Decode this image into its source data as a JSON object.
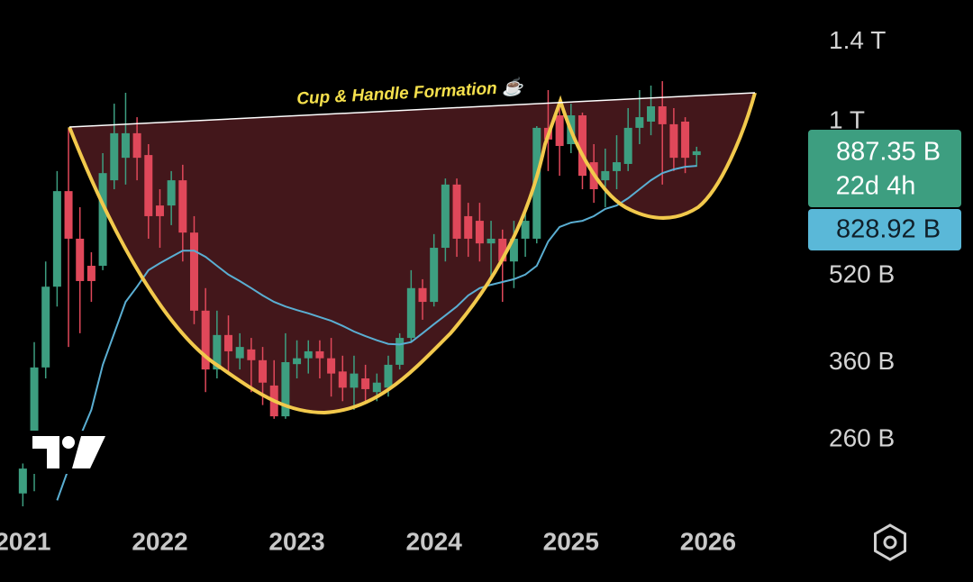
{
  "chart_data": {
    "type": "candlestick",
    "annotation": "Cup & Handle Formation ☕",
    "log_scale": true,
    "ylim": [
      183,
      1674
    ],
    "yticks": [
      {
        "value": 1400,
        "label": "1.4 T"
      },
      {
        "value": 1000,
        "label": "1 T"
      },
      {
        "value": 520,
        "label": "520 B"
      },
      {
        "value": 360,
        "label": "360 B"
      },
      {
        "value": 260,
        "label": "260 B"
      }
    ],
    "xlim": [
      -2,
      69
    ],
    "xticks": [
      {
        "value": 0,
        "label": "2021"
      },
      {
        "value": 12,
        "label": "2022"
      },
      {
        "value": 24,
        "label": "2023"
      },
      {
        "value": 36,
        "label": "2024"
      },
      {
        "value": 48,
        "label": "2025"
      },
      {
        "value": 60,
        "label": "2026"
      }
    ],
    "up_color": "#3d9e80",
    "down_color": "#e0485a",
    "open": [
      207,
      230,
      353,
      497,
      745,
      609,
      543,
      543,
      780,
      858,
      952,
      868,
      701,
      701,
      780,
      625,
      449,
      350,
      405,
      367,
      381,
      364,
      327,
      287,
      358,
      367,
      378,
      367,
      347,
      324,
      337,
      318,
      324,
      357,
      400,
      494,
      466,
      586,
      766,
      670,
      657,
      597,
      609,
      553,
      609,
      609,
      974,
      1027,
      909,
      1027,
      842,
      780,
      811,
      836,
      974,
      1000,
      1067,
      989,
      1000,
      868
    ],
    "high": [
      235,
      393,
      553,
      811,
      970,
      696,
      575,
      875,
      1079,
      1130,
      1019,
      909,
      751,
      811,
      833,
      670,
      494,
      449,
      440,
      408,
      400,
      385,
      364,
      408,
      396,
      396,
      396,
      400,
      371,
      371,
      357,
      344,
      371,
      408,
      533,
      513,
      621,
      786,
      786,
      709,
      709,
      657,
      633,
      657,
      696,
      981,
      1143,
      1067,
      1079,
      1039,
      909,
      892,
      944,
      1059,
      1143,
      1165,
      1187,
      1059,
      1019,
      899
    ],
    "low": [
      196,
      209,
      337,
      457,
      385,
      408,
      466,
      533,
      751,
      766,
      780,
      609,
      586,
      645,
      553,
      424,
      318,
      337,
      344,
      350,
      318,
      301,
      284,
      284,
      337,
      344,
      337,
      312,
      306,
      295,
      306,
      306,
      312,
      350,
      393,
      432,
      457,
      553,
      564,
      564,
      553,
      513,
      466,
      494,
      564,
      597,
      811,
      795,
      875,
      751,
      709,
      696,
      751,
      811,
      909,
      944,
      766,
      811,
      804,
      826
    ],
    "close": [
      230,
      353,
      497,
      745,
      609,
      509,
      509,
      804,
      952,
      952,
      858,
      670,
      670,
      780,
      625,
      449,
      350,
      405,
      378,
      385,
      364,
      331,
      287,
      361,
      367,
      378,
      367,
      344,
      324,
      344,
      322,
      331,
      357,
      400,
      494,
      466,
      586,
      766,
      609,
      609,
      597,
      609,
      553,
      609,
      657,
      974,
      927,
      902,
      1027,
      795,
      751,
      811,
      842,
      974,
      1019,
      1067,
      989,
      858,
      858,
      882
    ],
    "moving_average": {
      "color": "#5aaed2",
      "values": [
        null,
        null,
        null,
        201,
        230,
        263,
        295,
        357,
        408,
        466,
        497,
        533,
        549,
        564,
        579,
        579,
        564,
        543,
        523,
        509,
        494,
        479,
        466,
        457,
        450,
        444,
        437,
        430,
        421,
        411,
        403,
        396,
        390,
        389,
        393,
        408,
        424,
        440,
        457,
        479,
        494,
        501,
        507,
        513,
        523,
        543,
        602,
        640,
        652,
        657,
        670,
        691,
        701,
        723,
        751,
        780,
        804,
        817,
        826,
        829
      ]
    },
    "price_label": "887.35 B",
    "countdown": "22d 4h",
    "ma_label": "828.92 B"
  }
}
